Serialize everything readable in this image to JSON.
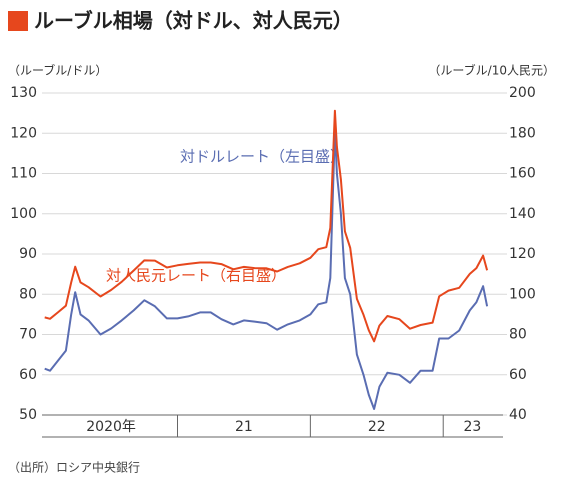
{
  "chart_data": {
    "type": "line",
    "title": "ルーブル相場（対ドル、対人民元）",
    "y_label": "（ルーブル/ドル）",
    "y2_label": "（ルーブル/10人民元）",
    "source": "（出所）ロシア中央銀行",
    "x": [
      2020.0,
      2020.04,
      2020.1,
      2020.16,
      2020.2,
      2020.23,
      2020.27,
      2020.33,
      2020.42,
      2020.5,
      2020.58,
      2020.67,
      2020.75,
      2020.83,
      2020.92,
      2021.0,
      2021.08,
      2021.17,
      2021.25,
      2021.33,
      2021.42,
      2021.5,
      2021.58,
      2021.67,
      2021.75,
      2021.83,
      2021.92,
      2022.0,
      2022.06,
      2022.12,
      2022.15,
      2022.17,
      2022.185,
      2022.2,
      2022.23,
      2022.26,
      2022.3,
      2022.35,
      2022.4,
      2022.44,
      2022.48,
      2022.52,
      2022.58,
      2022.67,
      2022.75,
      2022.83,
      2022.92,
      2022.97,
      2023.04,
      2023.12,
      2023.2,
      2023.25,
      2023.3,
      2023.33
    ],
    "series": [
      {
        "name": "対ドルレート（左目盛）",
        "color": "#5a6db2",
        "axis": "y",
        "values": [
          61.5,
          61,
          63.5,
          66,
          75,
          80.5,
          75,
          73.5,
          70,
          71.5,
          73.5,
          76,
          78.5,
          77,
          74,
          74,
          74.5,
          75.5,
          75.5,
          73.8,
          72.5,
          73.5,
          73.2,
          72.8,
          71.2,
          72.5,
          73.5,
          75,
          77.5,
          78,
          84,
          105,
          121,
          110,
          100,
          84,
          80,
          65,
          60,
          55,
          51.5,
          57,
          60.5,
          60,
          58,
          61,
          61,
          69,
          69,
          71,
          76,
          78,
          82,
          77
        ]
      },
      {
        "name": "対人民元レート（右目盛）",
        "color": "#e6471d",
        "axis": "y2",
        "values": [
          88.5,
          87.8,
          91.0,
          94.3,
          105.9,
          113.7,
          105.9,
          103.5,
          98.9,
          102.1,
          106.2,
          111.8,
          116.8,
          116.7,
          113.3,
          114.4,
          115.1,
          115.8,
          115.8,
          115.0,
          112.4,
          113.6,
          113.0,
          112.9,
          111.3,
          113.6,
          115.4,
          118.1,
          122.4,
          123.4,
          132.9,
          166.1,
          191.2,
          173.2,
          157.0,
          131.3,
          123.1,
          97.7,
          89.8,
          82.1,
          76.6,
          84.4,
          89.2,
          87.6,
          82.9,
          84.7,
          85.9,
          99.0,
          101.8,
          103.2,
          110.1,
          113.0,
          119.2,
          111.9
        ]
      }
    ],
    "xlim": [
      2019.98,
      2023.45
    ],
    "xticks": [
      {
        "value": 2020.5,
        "label": "2020年"
      },
      {
        "value": 2021.5,
        "label": "21"
      },
      {
        "value": 2022.5,
        "label": "22"
      },
      {
        "value": 2023.22,
        "label": "23"
      }
    ],
    "year_boundaries": [
      2021,
      2022,
      2023
    ],
    "ylim": [
      50,
      130
    ],
    "yticks": [
      50,
      60,
      70,
      80,
      90,
      100,
      110,
      120,
      130
    ],
    "y2lim": [
      40,
      200
    ],
    "y2ticks": [
      40,
      60,
      80,
      100,
      120,
      140,
      160,
      180,
      200
    ],
    "grid": true,
    "title_color": "#e6471d"
  }
}
